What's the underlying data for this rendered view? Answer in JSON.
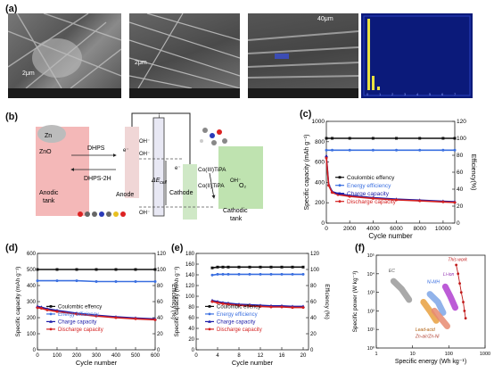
{
  "panel_labels": {
    "a": "(a)",
    "b": "(b)",
    "c": "(c)",
    "d": "(d)",
    "e": "(e)",
    "f": "(f)"
  },
  "sem_images": [
    {
      "scale": "2μm"
    },
    {
      "scale": "2μm"
    },
    {
      "scale": "40μm"
    },
    {
      "scale": ""
    }
  ],
  "schematic": {
    "zn": "Zn",
    "zno": "ZnO",
    "dhps": "DHPS",
    "dhps2h": "DHPS-2H",
    "anodic_tank": "Anodic\ntank",
    "anode": "Anode",
    "cathode": "Cathode",
    "cathodic_tank": "Cathodic\ntank",
    "co3": "Co(III)TiPA",
    "co2": "Co(II)TiPA",
    "oh1": "OH⁻",
    "oh2": "OH⁻",
    "oh3": "OH⁻",
    "oh4": "OH⁻",
    "e1": "e⁻",
    "e2": "e⁻",
    "o2": "O₂",
    "delta_e": "ΔE",
    "delta_e_sub": "cell",
    "circuit_top": "i"
  },
  "colors": {
    "coulombic": "#111111",
    "energy": "#3a6fe0",
    "charge": "#1a1aa8",
    "discharge": "#d42020",
    "anodic_tank": "#f4b8b8",
    "cathodic_tank": "#bfe3b0"
  },
  "chart_data": [
    {
      "panel": "c",
      "type": "line",
      "xlabel": "Cycle number",
      "ylabel": "Specific capacity (mAh g⁻¹)",
      "y2label": "Efficiency(%)",
      "xlim": [
        0,
        11000
      ],
      "xticks": [
        0,
        2000,
        4000,
        6000,
        8000,
        10000
      ],
      "ylim": [
        0,
        1000
      ],
      "yticks": [
        0,
        200,
        400,
        600,
        800,
        1000
      ],
      "y2lim": [
        0,
        120
      ],
      "y2ticks": [
        0,
        20,
        40,
        60,
        80,
        100,
        120
      ],
      "legend": [
        "Coulombic effency",
        "Energy efficiency",
        "Charge capacity",
        "Discharge capacity"
      ],
      "series": [
        {
          "name": "Coulombic effency",
          "axis": "y2",
          "x": [
            0,
            500,
            2000,
            4000,
            6000,
            8000,
            10000,
            11000
          ],
          "values": [
            100,
            100,
            100,
            100,
            100,
            100,
            100,
            100
          ]
        },
        {
          "name": "Energy efficiency",
          "axis": "y2",
          "x": [
            0,
            500,
            2000,
            4000,
            6000,
            8000,
            10000,
            11000
          ],
          "values": [
            86,
            86,
            86,
            86,
            86,
            86,
            86,
            86
          ]
        },
        {
          "name": "Charge capacity",
          "axis": "y",
          "x": [
            0,
            200,
            500,
            1000,
            2000,
            4000,
            6000,
            8000,
            10000,
            11000
          ],
          "values": [
            660,
            380,
            310,
            290,
            270,
            250,
            235,
            225,
            215,
            210
          ]
        },
        {
          "name": "Discharge capacity",
          "axis": "y",
          "x": [
            0,
            200,
            500,
            1000,
            2000,
            4000,
            6000,
            8000,
            10000,
            11000
          ],
          "values": [
            640,
            370,
            300,
            280,
            262,
            242,
            228,
            218,
            208,
            203
          ]
        }
      ]
    },
    {
      "panel": "d",
      "type": "line",
      "xlabel": "Cycle number",
      "ylabel": "Specific capacity (mAh g⁻¹)",
      "y2label": "Efficiency (%)",
      "xlim": [
        0,
        600
      ],
      "xticks": [
        0,
        100,
        200,
        300,
        400,
        500,
        600
      ],
      "ylim": [
        0,
        600
      ],
      "yticks": [
        0,
        100,
        200,
        300,
        400,
        500,
        600
      ],
      "y2lim": [
        0,
        120
      ],
      "y2ticks": [
        0,
        20,
        40,
        60,
        80,
        100,
        120
      ],
      "legend": [
        "Coulombic effency",
        "Energy efficiency",
        "Charge capacity",
        "Discharge capacity"
      ],
      "series": [
        {
          "name": "Coulombic effency",
          "axis": "y2",
          "x": [
            0,
            100,
            200,
            300,
            400,
            500,
            600
          ],
          "values": [
            100,
            100,
            100,
            100,
            100,
            100,
            100
          ]
        },
        {
          "name": "Energy efficiency",
          "axis": "y2",
          "x": [
            0,
            100,
            200,
            300,
            400,
            500,
            600
          ],
          "values": [
            86,
            86,
            86,
            85,
            85,
            85,
            85
          ]
        },
        {
          "name": "Charge capacity",
          "axis": "y",
          "x": [
            0,
            20,
            50,
            100,
            200,
            300,
            400,
            500,
            600
          ],
          "values": [
            270,
            265,
            255,
            245,
            228,
            215,
            205,
            198,
            192
          ]
        },
        {
          "name": "Discharge capacity",
          "axis": "y",
          "x": [
            0,
            20,
            50,
            100,
            200,
            300,
            400,
            500,
            600
          ],
          "values": [
            262,
            258,
            248,
            238,
            222,
            210,
            200,
            193,
            187
          ]
        }
      ]
    },
    {
      "panel": "e",
      "type": "line",
      "xlabel": "Cycle number",
      "ylabel": "Specific capacity (mAh g⁻¹)",
      "y2label": "Efficiency (%)",
      "xlim": [
        0,
        21
      ],
      "xticks": [
        0,
        4,
        8,
        12,
        16,
        20
      ],
      "ylim": [
        0,
        180
      ],
      "yticks": [
        0,
        20,
        40,
        60,
        80,
        100,
        120,
        140,
        160,
        180
      ],
      "y2lim": [
        0,
        120
      ],
      "y2ticks": [
        0,
        20,
        40,
        60,
        80,
        100,
        120
      ],
      "legend": [
        "Coulombic effency",
        "Energy efficiency",
        "Charge capacity",
        "Discharge capacity"
      ],
      "series": [
        {
          "name": "Coulombic effency",
          "axis": "y2",
          "x": [
            3,
            4,
            5,
            6,
            8,
            10,
            12,
            14,
            16,
            18,
            20
          ],
          "values": [
            102,
            103,
            103,
            103,
            103,
            103,
            103,
            103,
            103,
            103,
            103
          ]
        },
        {
          "name": "Energy efficiency",
          "axis": "y2",
          "x": [
            3,
            4,
            5,
            6,
            8,
            10,
            12,
            14,
            16,
            18,
            20
          ],
          "values": [
            93,
            94,
            94,
            94,
            94,
            94,
            94,
            94,
            94,
            94,
            94
          ]
        },
        {
          "name": "Charge capacity",
          "axis": "y",
          "x": [
            3,
            4,
            5,
            6,
            8,
            10,
            12,
            14,
            16,
            18,
            20
          ],
          "values": [
            92,
            90,
            88,
            87,
            85,
            84,
            83,
            82,
            82,
            81,
            81
          ]
        },
        {
          "name": "Discharge capacity",
          "axis": "y",
          "x": [
            3,
            4,
            5,
            6,
            8,
            10,
            12,
            14,
            16,
            18,
            20
          ],
          "values": [
            90,
            88,
            86,
            85,
            83,
            82,
            81,
            80,
            80,
            79,
            79
          ]
        }
      ]
    },
    {
      "panel": "f",
      "type": "scatter",
      "scale": "log",
      "xlabel": "Specific energy (Wh kg⁻¹)",
      "ylabel": "Specific power (W kg⁻¹)",
      "xlim": [
        1,
        1000
      ],
      "ylim": [
        1,
        100000
      ],
      "xticks": [
        1,
        10,
        100,
        1000
      ],
      "yticks": [
        1,
        10,
        100,
        1000,
        10000,
        100000
      ],
      "regions": [
        {
          "name": "EC",
          "color": "#9a9a9a",
          "x": [
            3,
            5,
            8
          ],
          "values": [
            4000,
            1500,
            400
          ]
        },
        {
          "name": "Ni-MH",
          "color": "#7ea6e6",
          "x": [
            30,
            50,
            70
          ],
          "values": [
            800,
            300,
            80
          ]
        },
        {
          "name": "Li-ion",
          "color": "#b040d0",
          "x": [
            80,
            110,
            150
          ],
          "values": [
            2000,
            600,
            150
          ]
        },
        {
          "name": "Lead-acid",
          "color": "#e8a040",
          "x": [
            20,
            30,
            45
          ],
          "values": [
            300,
            100,
            30
          ]
        },
        {
          "name": "Zn-air/Zn-Ni",
          "color": "#e88a70",
          "x": [
            40,
            60,
            90
          ],
          "values": [
            100,
            40,
            15
          ]
        }
      ],
      "series": [
        {
          "name": "This work",
          "x": [
            160,
            180,
            200,
            220,
            250,
            270,
            290
          ],
          "values": [
            30000,
            10000,
            3000,
            1000,
            300,
            100,
            40
          ]
        }
      ],
      "annotations": [
        "EC",
        "Ni-MH",
        "Li-ion",
        "Lead-acid",
        "Zn-air/Zn-Ni",
        "This work"
      ]
    }
  ]
}
